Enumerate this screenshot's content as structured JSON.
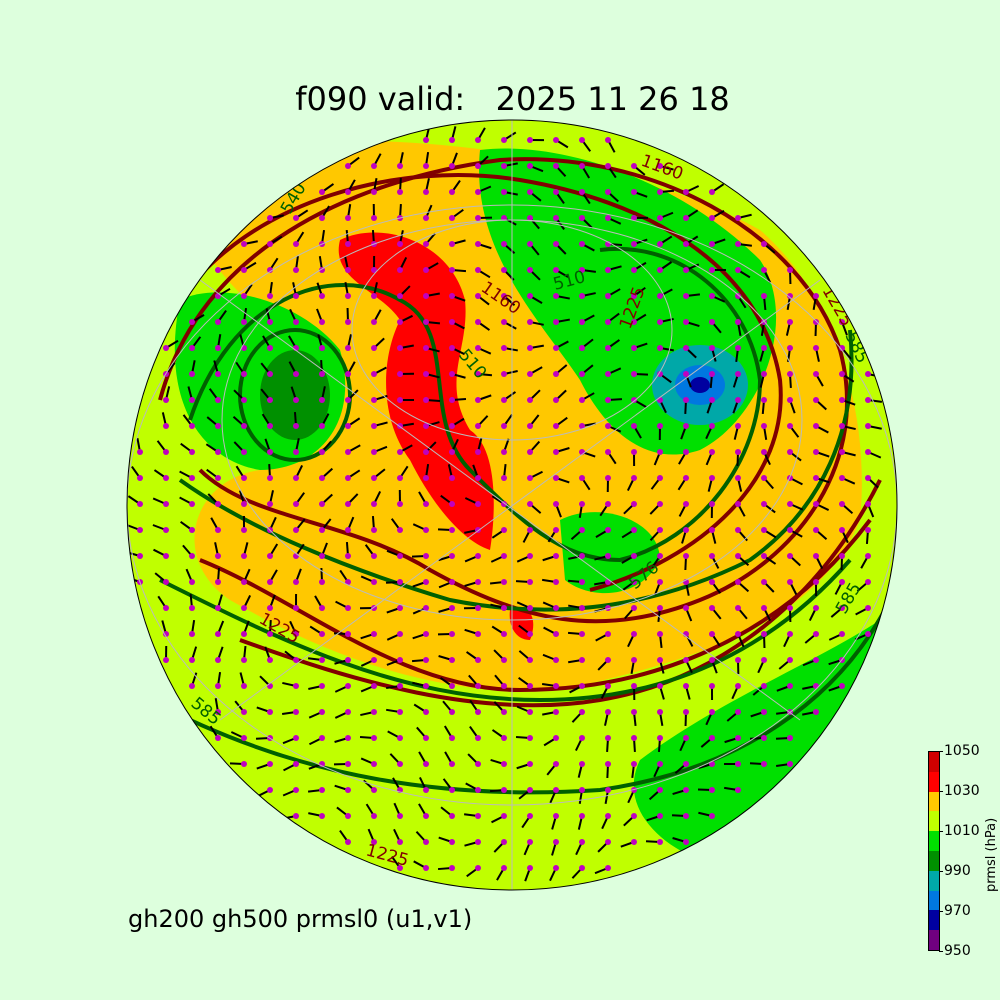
{
  "title": "f090 valid:   2025 11 26 18",
  "subtitle": "gh200 gh500 prmsl0 (u1,v1)",
  "colorbar": {
    "label": "prmsl (hPa)",
    "ticks": [
      "950",
      "970",
      "990",
      "1010",
      "1030",
      "1050"
    ],
    "colors": [
      "#700080",
      "#0000a0",
      "#0078e0",
      "#00a8a8",
      "#009000",
      "#00e000",
      "#c0ff00",
      "#ffc800",
      "#ff0000",
      "#d00000"
    ]
  },
  "contour_labels": {
    "gh200": [
      "1225",
      "1160",
      "1225",
      "1225",
      "1225",
      "1160"
    ],
    "gh500": [
      "510",
      "540",
      "585",
      "576",
      "585",
      "510",
      "585"
    ]
  },
  "colors": {
    "background": "#ddffdd",
    "gh200_contour": "#800000",
    "gh500_contour": "#006000",
    "wind_dot": "#c000c0"
  }
}
